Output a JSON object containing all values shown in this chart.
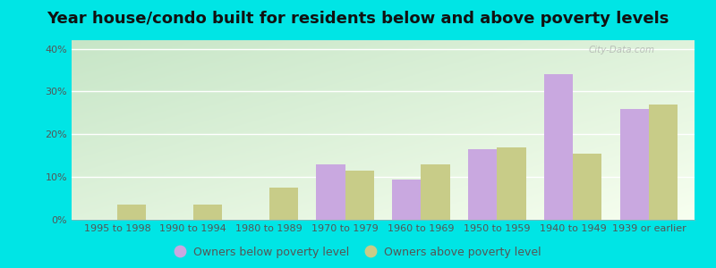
{
  "title": "Year house/condo built for residents below and above poverty levels",
  "categories": [
    "1995 to 1998",
    "1990 to 1994",
    "1980 to 1989",
    "1970 to 1979",
    "1960 to 1969",
    "1950 to 1959",
    "1940 to 1949",
    "1939 or earlier"
  ],
  "below_poverty": [
    0,
    0,
    0,
    13,
    9.5,
    16.5,
    34,
    26
  ],
  "above_poverty": [
    3.5,
    3.5,
    7.5,
    11.5,
    13,
    17,
    15.5,
    27
  ],
  "below_color": "#c9a8e0",
  "above_color": "#c8cc88",
  "ylabel_ticks": [
    "0%",
    "10%",
    "20%",
    "30%",
    "40%"
  ],
  "ytick_vals": [
    0,
    10,
    20,
    30,
    40
  ],
  "ylim": [
    0,
    42
  ],
  "bar_width": 0.38,
  "legend_below": "Owners below poverty level",
  "legend_above": "Owners above poverty level",
  "title_fontsize": 13,
  "tick_fontsize": 8,
  "legend_fontsize": 9,
  "watermark": "City-Data.com",
  "outer_bg": "#00e5e5",
  "grad_topleft": "#c8e6c9",
  "grad_bottomright": "#f5ffe8"
}
